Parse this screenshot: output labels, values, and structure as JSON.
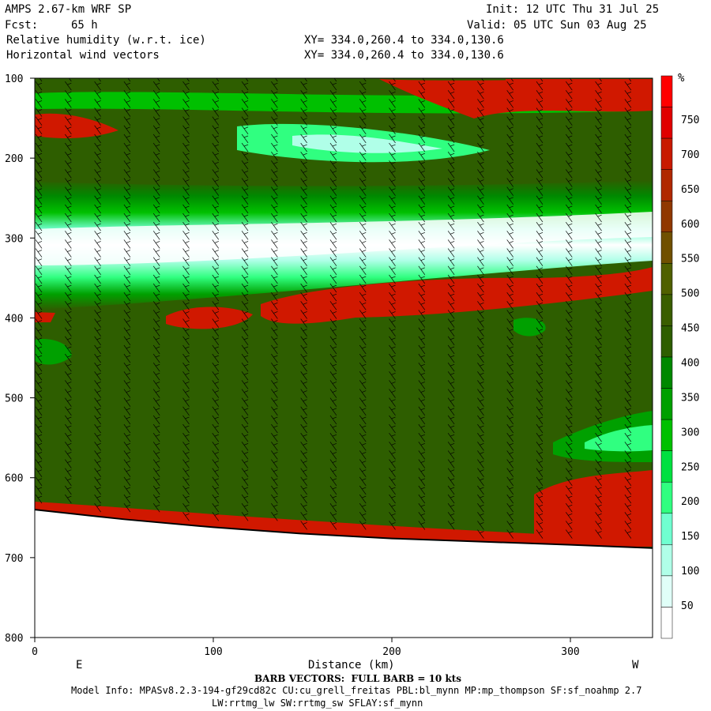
{
  "header": {
    "title": "AMPS 2.67-km WRF SP",
    "fcst_label": "Fcst:",
    "fcst_value": "65 h",
    "init": "Init: 12 UTC Thu 31 Jul 25",
    "valid": "Valid: 05 UTC Sun 03 Aug 25",
    "field1": "Relative humidity (w.r.t. ice)",
    "field2": "Horizontal wind vectors",
    "xy1": "XY= 334.0,260.4 to 334.0,130.6",
    "xy2": "XY= 334.0,260.4 to 334.0,130.6"
  },
  "footer": {
    "barb_note": "BARB VECTORS:  FULL BARB = 10 kts",
    "model_info": "Model Info: MPASv8.2.3-194-gf29cd82c CU:cu_grell_freitas PBL:bl_mynn MP:mp_thompson SF:sf_noahmp 2.7",
    "model_info2": "LW:rrtmg_lw SW:rrtmg_sw SFLAY:sf_mynn"
  },
  "chart_data": {
    "type": "heatmap",
    "title": "Relative humidity (w.r.t. ice)",
    "xlabel": "Distance (km)",
    "ylabel": "",
    "xlim": [
      0,
      346
    ],
    "ylim": [
      800,
      100
    ],
    "x_ticks": [
      0,
      100,
      200,
      300
    ],
    "y_ticks": [
      100,
      200,
      300,
      400,
      500,
      600,
      700,
      800
    ],
    "x_end_labels": {
      "left": "E",
      "right": "W"
    },
    "colorbar": {
      "unit": "%",
      "labels": [
        50,
        100,
        150,
        200,
        250,
        300,
        350,
        400,
        450,
        500,
        550,
        600,
        650,
        700,
        750
      ]
    },
    "terrain_pressure": [
      {
        "x": 0,
        "p": 640
      },
      {
        "x": 50,
        "p": 652
      },
      {
        "x": 100,
        "p": 662
      },
      {
        "x": 150,
        "p": 670
      },
      {
        "x": 200,
        "p": 676
      },
      {
        "x": 250,
        "p": 680
      },
      {
        "x": 300,
        "p": 684
      },
      {
        "x": 346,
        "p": 688
      }
    ],
    "colors": {
      "below_100": [
        "#ffffff",
        "#e0fff8",
        "#b0ffe8",
        "#70ffd0",
        "#30ff80",
        "#00e040",
        "#00c000",
        "#00a000",
        "#008800",
        "#2e5e00"
      ],
      "above_100": [
        "#3a5e00",
        "#506000",
        "#705000",
        "#903800",
        "#b02800",
        "#c81a00",
        "#e00000",
        "#ff0000"
      ],
      "background": "#2e5e00",
      "humid_band": "#ffffff",
      "dry_patch": "#d01800",
      "wind_barb": "#000000",
      "terrain_edge": "#ff0000"
    }
  }
}
